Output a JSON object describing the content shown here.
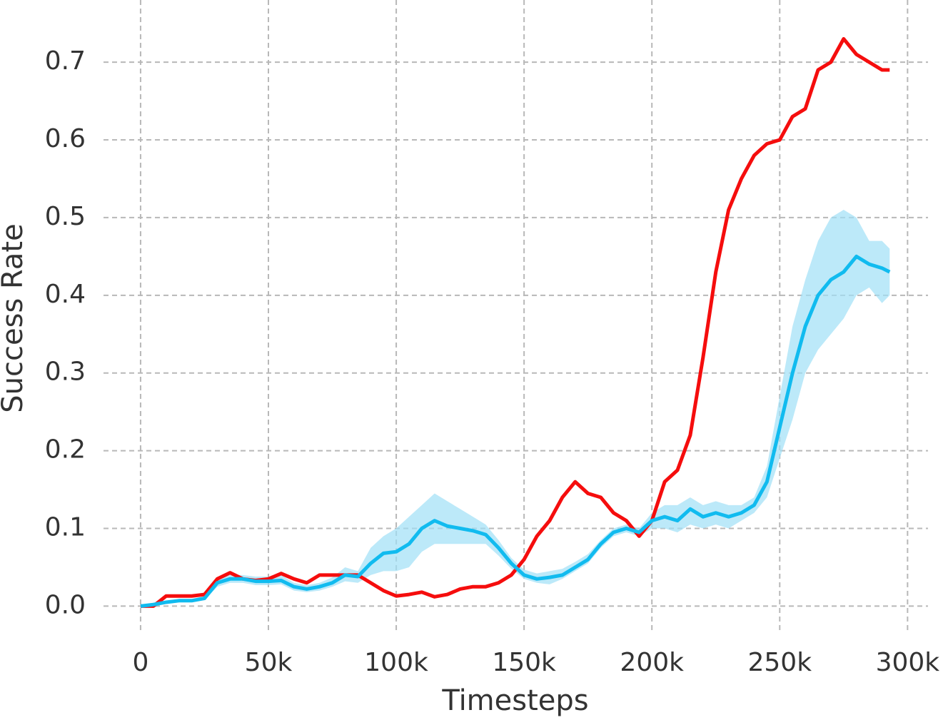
{
  "chart_data": {
    "type": "line",
    "x_label": "Timesteps",
    "y_label": "Success Rate",
    "x": [
      0,
      5000,
      10000,
      15000,
      20000,
      25000,
      30000,
      35000,
      40000,
      45000,
      50000,
      55000,
      60000,
      65000,
      70000,
      75000,
      80000,
      85000,
      90000,
      95000,
      100000,
      105000,
      110000,
      115000,
      120000,
      125000,
      130000,
      135000,
      140000,
      145000,
      150000,
      155000,
      160000,
      165000,
      170000,
      175000,
      180000,
      185000,
      190000,
      195000,
      200000,
      205000,
      210000,
      215000,
      220000,
      225000,
      230000,
      235000,
      240000,
      245000,
      250000,
      255000,
      260000,
      265000,
      270000,
      275000,
      280000,
      285000,
      290000,
      293000
    ],
    "series": [
      {
        "color": "#f50d0d",
        "values": [
          0,
          0,
          0.013,
          0.013,
          0.013,
          0.015,
          0.035,
          0.043,
          0.035,
          0.033,
          0.035,
          0.042,
          0.035,
          0.03,
          0.04,
          0.04,
          0.04,
          0.04,
          0.03,
          0.02,
          0.013,
          0.015,
          0.018,
          0.012,
          0.015,
          0.022,
          0.025,
          0.025,
          0.03,
          0.04,
          0.06,
          0.09,
          0.11,
          0.14,
          0.16,
          0.145,
          0.14,
          0.12,
          0.11,
          0.09,
          0.11,
          0.16,
          0.175,
          0.22,
          0.32,
          0.43,
          0.51,
          0.55,
          0.58,
          0.595,
          0.6,
          0.63,
          0.64,
          0.69,
          0.7,
          0.73,
          0.71,
          0.7,
          0.69,
          0.69
        ]
      },
      {
        "color": "#11bbef",
        "band_color": "#9fe0f6",
        "values": [
          0,
          0.002,
          0.005,
          0.007,
          0.007,
          0.01,
          0.03,
          0.035,
          0.035,
          0.032,
          0.032,
          0.033,
          0.025,
          0.022,
          0.025,
          0.03,
          0.04,
          0.038,
          0.055,
          0.068,
          0.07,
          0.08,
          0.1,
          0.11,
          0.103,
          0.1,
          0.097,
          0.092,
          0.075,
          0.055,
          0.04,
          0.035,
          0.037,
          0.04,
          0.05,
          0.06,
          0.08,
          0.095,
          0.1,
          0.095,
          0.11,
          0.115,
          0.11,
          0.125,
          0.115,
          0.12,
          0.115,
          0.12,
          0.13,
          0.16,
          0.23,
          0.3,
          0.36,
          0.4,
          0.42,
          0.43,
          0.45,
          0.44,
          0.435,
          0.43
        ],
        "lower": [
          0,
          0,
          0.003,
          0.005,
          0.005,
          0.008,
          0.025,
          0.03,
          0.03,
          0.027,
          0.027,
          0.028,
          0.02,
          0.018,
          0.02,
          0.025,
          0.032,
          0.03,
          0.04,
          0.045,
          0.045,
          0.05,
          0.07,
          0.08,
          0.08,
          0.08,
          0.08,
          0.08,
          0.065,
          0.048,
          0.035,
          0.03,
          0.028,
          0.035,
          0.045,
          0.055,
          0.075,
          0.09,
          0.095,
          0.09,
          0.1,
          0.1,
          0.095,
          0.105,
          0.1,
          0.105,
          0.1,
          0.11,
          0.12,
          0.14,
          0.19,
          0.24,
          0.3,
          0.33,
          0.35,
          0.37,
          0.4,
          0.41,
          0.39,
          0.4
        ],
        "upper": [
          0,
          0.004,
          0.007,
          0.009,
          0.009,
          0.013,
          0.037,
          0.04,
          0.04,
          0.038,
          0.038,
          0.04,
          0.03,
          0.027,
          0.03,
          0.037,
          0.05,
          0.045,
          0.075,
          0.09,
          0.1,
          0.115,
          0.13,
          0.145,
          0.135,
          0.125,
          0.115,
          0.105,
          0.085,
          0.062,
          0.047,
          0.042,
          0.045,
          0.048,
          0.057,
          0.067,
          0.085,
          0.1,
          0.105,
          0.1,
          0.12,
          0.13,
          0.13,
          0.14,
          0.13,
          0.135,
          0.13,
          0.13,
          0.14,
          0.18,
          0.27,
          0.36,
          0.42,
          0.47,
          0.5,
          0.51,
          0.5,
          0.47,
          0.47,
          0.46
        ]
      }
    ],
    "xlim": [
      -14500,
      308000
    ],
    "ylim": [
      -0.029,
      0.78
    ],
    "xticks": [
      0,
      {
        "value": 50000,
        "label": "50k"
      },
      {
        "value": 100000,
        "label": "100k"
      },
      {
        "value": 150000,
        "label": "150k"
      },
      {
        "value": 200000,
        "label": "200k"
      },
      {
        "value": 250000,
        "label": "250k"
      },
      {
        "value": 300000,
        "label": "300k"
      }
    ],
    "yticks": [
      {
        "value": 0,
        "label": "0.0"
      },
      0.1,
      0.2,
      0.3,
      0.4,
      0.5,
      0.6,
      0.7
    ],
    "grid": true
  }
}
